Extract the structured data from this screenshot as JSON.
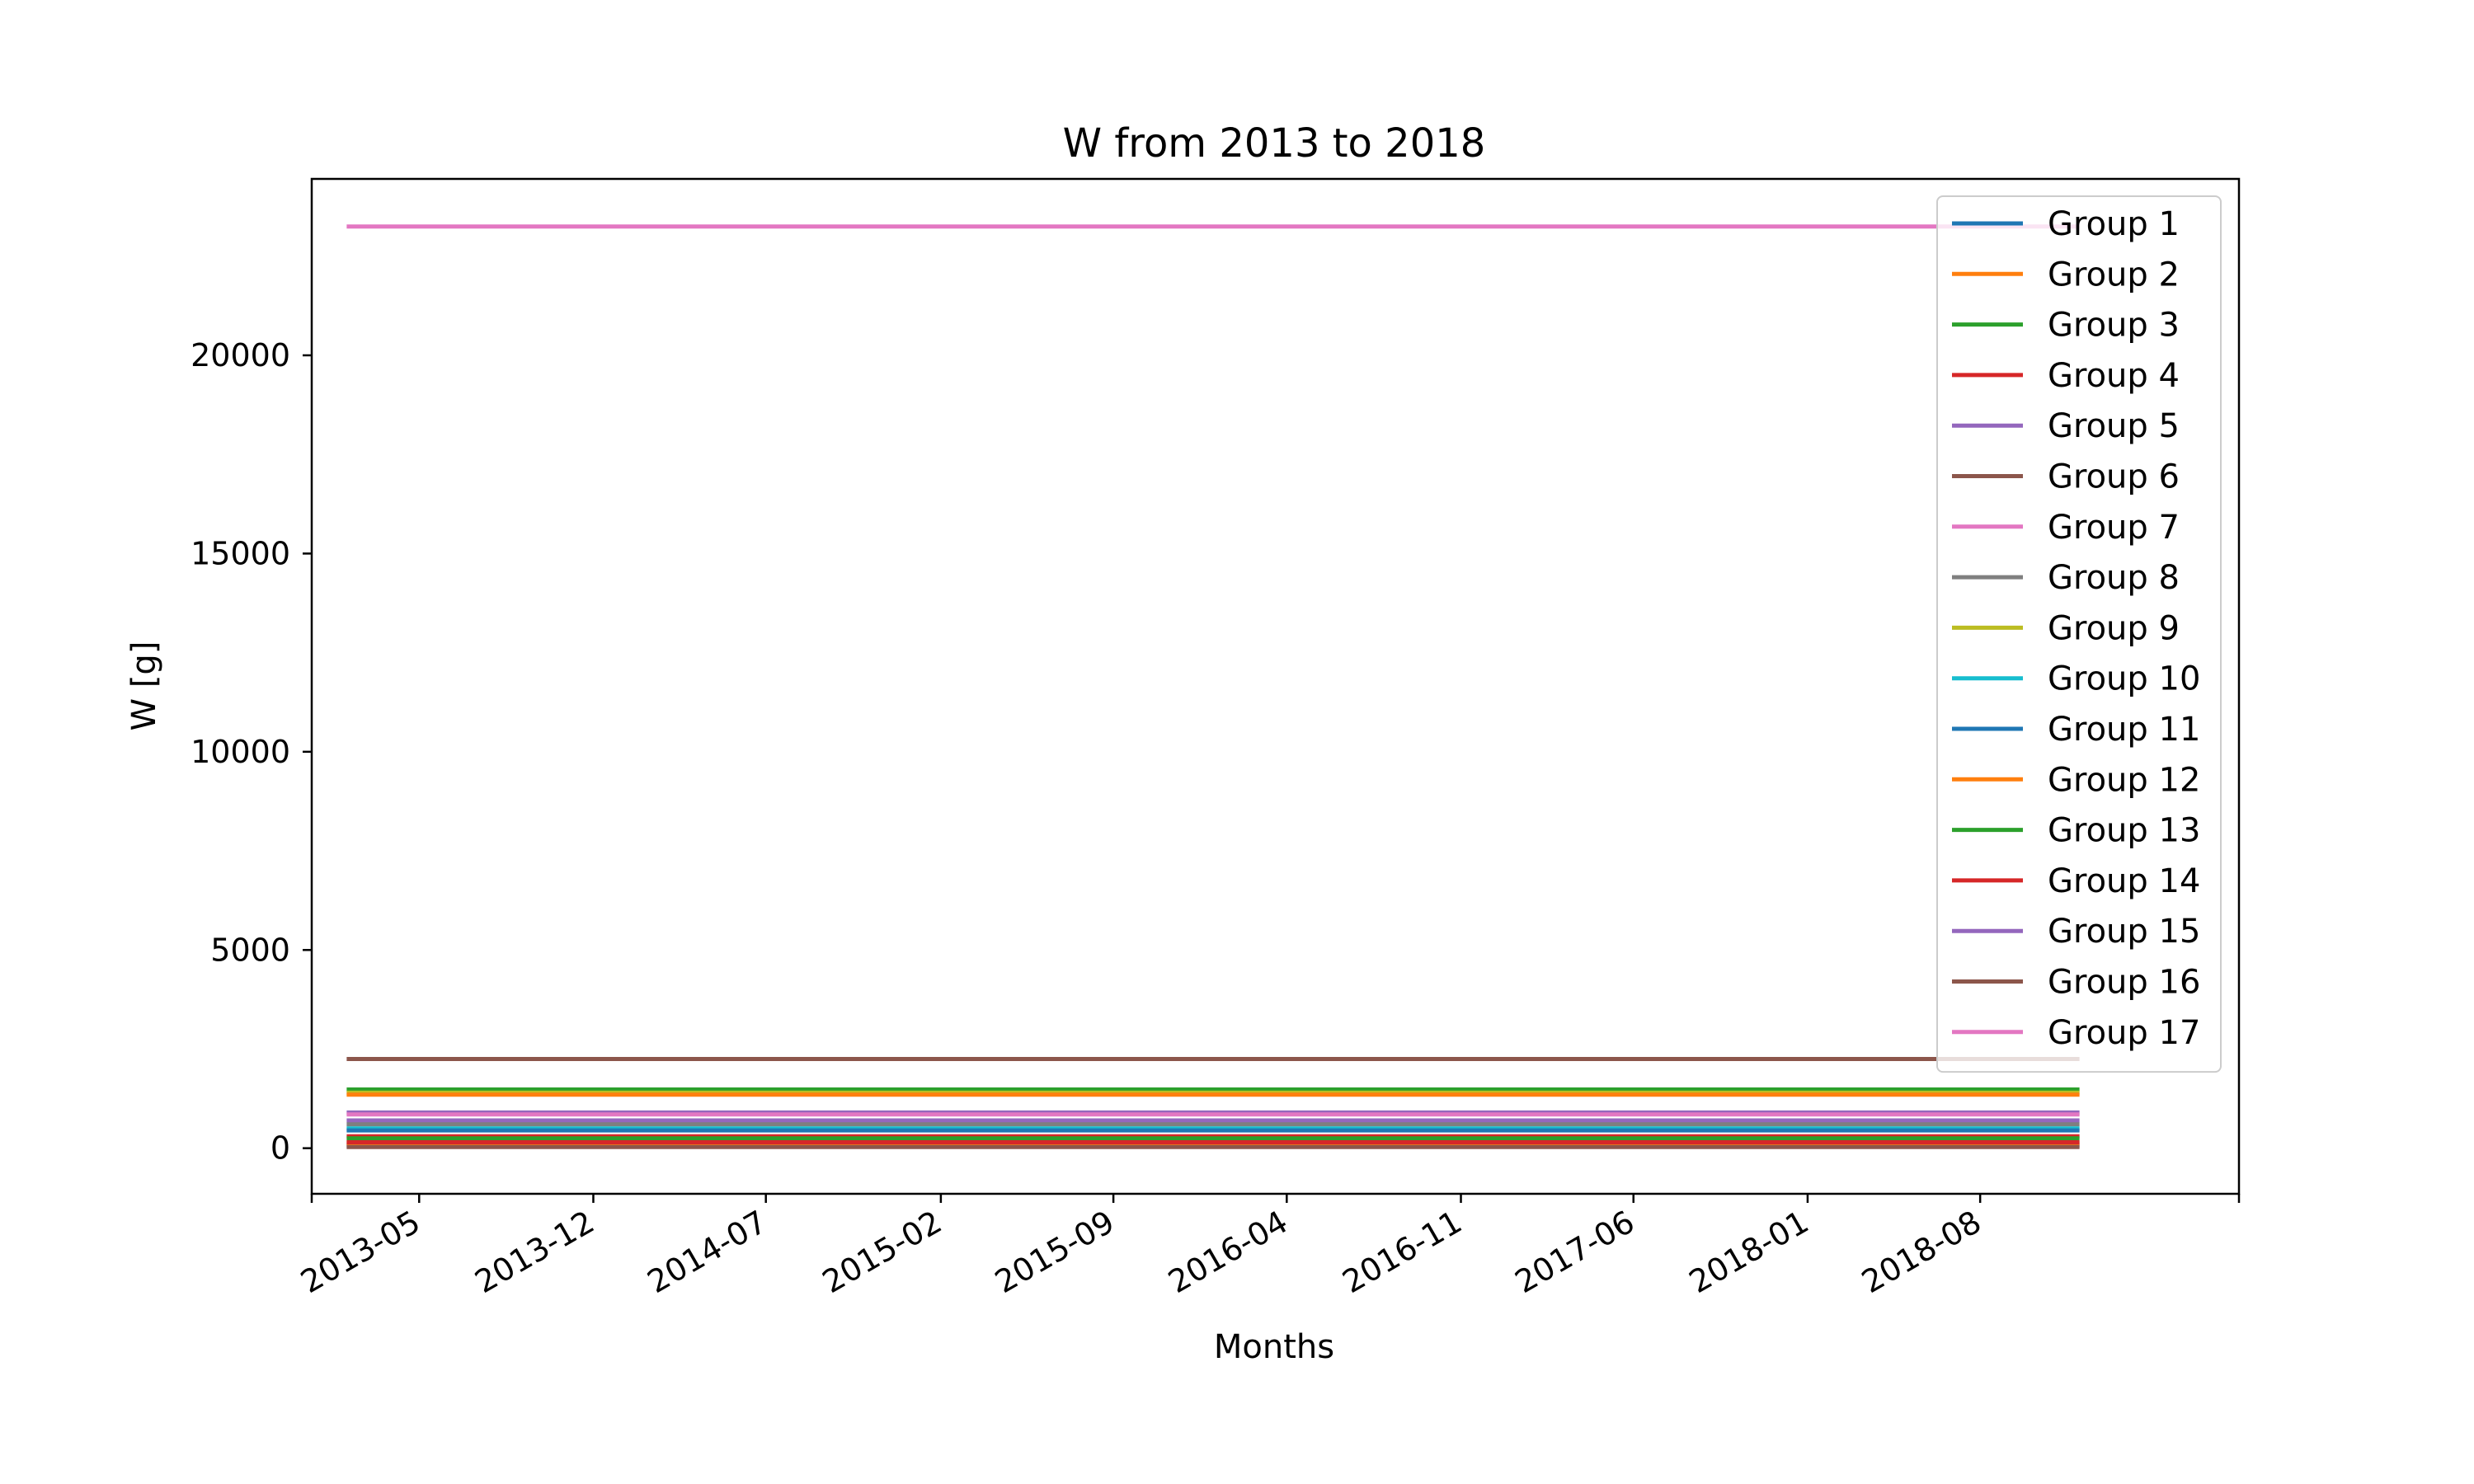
{
  "chart_data": {
    "type": "line",
    "title": "W from 2013 to 2018",
    "xlabel": "Months",
    "ylabel": "W [g]",
    "x_tick_labels": [
      "2013-05",
      "2013-12",
      "2014-07",
      "2015-02",
      "2015-09",
      "2016-04",
      "2016-11",
      "2017-06",
      "2018-01",
      "2018-08"
    ],
    "y_ticks": [
      0,
      5000,
      10000,
      15000,
      20000
    ],
    "xlim": [
      "2012-12-20",
      "2019-06-15"
    ],
    "ylim": [
      -1150,
      24450
    ],
    "x": [
      "2013-02-01",
      "2018-12-01"
    ],
    "grid": false,
    "legend_position": "top-right",
    "colors": {
      "c1": "#1f77b4",
      "c2": "#ff7f0e",
      "c3": "#2ca02c",
      "c4": "#d62728",
      "c5": "#9467bd",
      "c6": "#8c564b",
      "c7": "#e377c2",
      "c8": "#7f7f7f",
      "c9": "#bcbd22",
      "c10": "#17becf"
    },
    "series": [
      {
        "name": "Group 1",
        "color": "#1f77b4",
        "values": [
          60,
          60
        ]
      },
      {
        "name": "Group 2",
        "color": "#ff7f0e",
        "values": [
          120,
          120
        ]
      },
      {
        "name": "Group 3",
        "color": "#2ca02c",
        "values": [
          1480,
          1480
        ]
      },
      {
        "name": "Group 4",
        "color": "#d62728",
        "values": [
          300,
          300
        ]
      },
      {
        "name": "Group 5",
        "color": "#9467bd",
        "values": [
          700,
          700
        ]
      },
      {
        "name": "Group 6",
        "color": "#8c564b",
        "values": [
          2250,
          2250
        ]
      },
      {
        "name": "Group 7",
        "color": "#e377c2",
        "values": [
          23250,
          23250
        ]
      },
      {
        "name": "Group 8",
        "color": "#7f7f7f",
        "values": [
          600,
          600
        ]
      },
      {
        "name": "Group 9",
        "color": "#bcbd22",
        "values": [
          1400,
          1400
        ]
      },
      {
        "name": "Group 10",
        "color": "#17becf",
        "values": [
          500,
          500
        ]
      },
      {
        "name": "Group 11",
        "color": "#1f77b4",
        "values": [
          450,
          450
        ]
      },
      {
        "name": "Group 12",
        "color": "#ff7f0e",
        "values": [
          1350,
          1350
        ]
      },
      {
        "name": "Group 13",
        "color": "#2ca02c",
        "values": [
          250,
          250
        ]
      },
      {
        "name": "Group 14",
        "color": "#d62728",
        "values": [
          150,
          150
        ]
      },
      {
        "name": "Group 15",
        "color": "#9467bd",
        "values": [
          900,
          900
        ]
      },
      {
        "name": "Group 16",
        "color": "#8c564b",
        "values": [
          30,
          30
        ]
      },
      {
        "name": "Group 17",
        "color": "#e377c2",
        "values": [
          850,
          850
        ]
      }
    ]
  }
}
